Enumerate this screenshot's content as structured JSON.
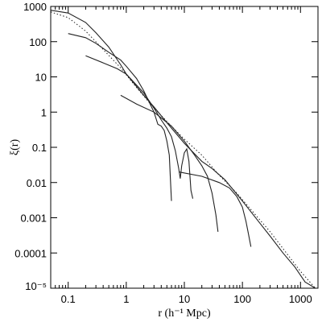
{
  "chart_data": {
    "type": "line",
    "title": "",
    "xlabel": "r (h⁻¹ Mpc)",
    "ylabel": "ξ(r)",
    "x_scale": "log",
    "y_scale": "log",
    "xlim": [
      0.05,
      2000
    ],
    "ylim": [
      1e-05,
      1000
    ],
    "grid": false,
    "x_ticks": [
      {
        "value": 0.1,
        "label": "0.1"
      },
      {
        "value": 1,
        "label": "1"
      },
      {
        "value": 10,
        "label": "10"
      },
      {
        "value": 100,
        "label": "100"
      },
      {
        "value": 1000,
        "label": "1000"
      }
    ],
    "y_ticks": [
      {
        "value": 1000,
        "label": "1000"
      },
      {
        "value": 100,
        "label": "100"
      },
      {
        "value": 10,
        "label": "10"
      },
      {
        "value": 1,
        "label": "1"
      },
      {
        "value": 0.1,
        "label": "0.1"
      },
      {
        "value": 0.01,
        "label": "0.01"
      },
      {
        "value": 0.001,
        "label": "0.001"
      },
      {
        "value": 0.0001,
        "label": "0.0001"
      },
      {
        "value": 1e-05,
        "label": "10⁻⁵"
      }
    ],
    "series": [
      {
        "style": "solid",
        "points": [
          [
            0.05,
            780
          ],
          [
            0.1,
            650
          ],
          [
            0.2,
            350
          ],
          [
            0.3,
            180
          ],
          [
            0.5,
            70
          ],
          [
            0.8,
            22
          ],
          [
            1,
            12
          ],
          [
            2,
            3
          ],
          [
            3,
            1.4
          ],
          [
            5,
            0.5
          ],
          [
            10,
            0.13
          ],
          [
            20,
            0.04
          ],
          [
            30,
            0.025
          ],
          [
            50,
            0.012
          ],
          [
            100,
            0.003
          ],
          [
            200,
            0.0007
          ],
          [
            300,
            0.0003
          ],
          [
            500,
            0.0001
          ],
          [
            800,
            4e-05
          ],
          [
            1200,
            1.5e-05
          ],
          [
            1800,
            1e-05
          ]
        ]
      },
      {
        "style": "dotted",
        "points": [
          [
            0.05,
            700
          ],
          [
            0.1,
            480
          ],
          [
            0.2,
            200
          ],
          [
            0.4,
            60
          ],
          [
            0.8,
            18
          ],
          [
            1.5,
            5
          ],
          [
            3,
            1.3
          ],
          [
            6,
            0.4
          ],
          [
            10,
            0.17
          ],
          [
            20,
            0.06
          ],
          [
            40,
            0.016
          ],
          [
            80,
            0.005
          ],
          [
            150,
            0.0015
          ],
          [
            300,
            0.0004
          ],
          [
            600,
            9e-05
          ],
          [
            1000,
            3e-05
          ],
          [
            1800,
            1e-05
          ]
        ]
      },
      {
        "style": "solid",
        "points": [
          [
            0.1,
            170
          ],
          [
            0.2,
            130
          ],
          [
            0.3,
            90
          ],
          [
            0.5,
            50
          ],
          [
            0.8,
            30
          ],
          [
            1,
            20
          ],
          [
            1.5,
            9
          ],
          [
            2,
            4
          ],
          [
            3,
            1
          ],
          [
            3.5,
            0.45
          ],
          [
            4,
            0.4
          ],
          [
            4.5,
            0.3
          ],
          [
            5,
            0.15
          ],
          [
            5.5,
            0.06
          ],
          [
            5.8,
            0.01
          ],
          [
            6,
            0.003
          ]
        ]
      },
      {
        "style": "solid",
        "points": [
          [
            0.2,
            40
          ],
          [
            0.4,
            25
          ],
          [
            0.7,
            17
          ],
          [
            1,
            12
          ],
          [
            2,
            3.5
          ],
          [
            3,
            1.3
          ],
          [
            4,
            0.6
          ],
          [
            5,
            0.35
          ],
          [
            6,
            0.2
          ],
          [
            7,
            0.08
          ],
          [
            8,
            0.025
          ],
          [
            8.5,
            0.013
          ],
          [
            9,
            0.03
          ],
          [
            10,
            0.07
          ],
          [
            11,
            0.09
          ],
          [
            12,
            0.04
          ],
          [
            13,
            0.006
          ],
          [
            14,
            0.0035
          ]
        ]
      },
      {
        "style": "solid",
        "points": [
          [
            0.8,
            3
          ],
          [
            1.5,
            1.7
          ],
          [
            3,
            1
          ],
          [
            6,
            0.4
          ],
          [
            10,
            0.15
          ],
          [
            15,
            0.06
          ],
          [
            20,
            0.03
          ],
          [
            25,
            0.015
          ],
          [
            30,
            0.005
          ],
          [
            35,
            0.0012
          ],
          [
            38,
            0.0004
          ]
        ]
      },
      {
        "style": "solid",
        "points": [
          [
            8,
            0.02
          ],
          [
            20,
            0.015
          ],
          [
            40,
            0.01
          ],
          [
            60,
            0.007
          ],
          [
            80,
            0.004
          ],
          [
            100,
            0.002
          ],
          [
            115,
            0.0008
          ],
          [
            125,
            0.0004
          ],
          [
            140,
            0.00015
          ]
        ]
      }
    ]
  }
}
